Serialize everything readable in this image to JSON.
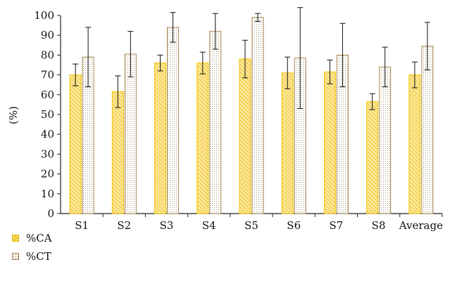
{
  "chart_data": {
    "type": "bar",
    "ylabel": "(%)",
    "xlabel": "",
    "ylim": [
      0,
      100
    ],
    "yticks": [
      "0",
      "10",
      "20",
      "30",
      "40",
      "50",
      "60",
      "70",
      "80",
      "90",
      "100"
    ],
    "grid": false,
    "legend_position": "bottom-left",
    "categories": [
      "S1",
      "S2",
      "S3",
      "S4",
      "S5",
      "S6",
      "S7",
      "S8",
      "Average"
    ],
    "series": [
      {
        "name": "%CA",
        "values": [
          70,
          61.5,
          76,
          76,
          78,
          71,
          71.5,
          56.5,
          70
        ],
        "error": [
          5.5,
          8,
          4,
          5.5,
          9.5,
          8,
          6,
          4,
          6.5
        ],
        "color": "#f2c200",
        "pattern": "diagonal-hatch"
      },
      {
        "name": "%CT",
        "values": [
          79,
          80.5,
          94,
          92,
          99,
          78.5,
          80,
          74,
          84.5
        ],
        "error": [
          15,
          11.5,
          7.5,
          9,
          2,
          25.5,
          16,
          10,
          12
        ],
        "color": "#a88850",
        "pattern": "dots"
      }
    ]
  }
}
